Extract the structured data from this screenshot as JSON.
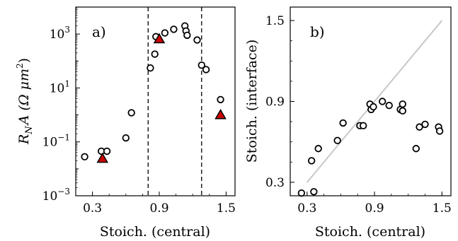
{
  "chart_data": [
    {
      "panel_label": "a)",
      "type": "scatter",
      "xlabel": "Stoich. (central)",
      "ylabel": "R_N A (Ω μm²)",
      "ylabel_parts": {
        "symbol": "R",
        "subscript": "N",
        "rest": "A (Ω μm",
        "sup": "2",
        "close": ")"
      },
      "yscale": "log",
      "xlim": [
        0.15,
        1.58
      ],
      "ylim": [
        0.001,
        10000
      ],
      "xticks": [
        0.3,
        0.9,
        1.5
      ],
      "xtick_labels": [
        "0.3",
        "0.9",
        "1.5"
      ],
      "yticks": [
        0.001,
        0.1,
        10,
        1000
      ],
      "ytick_labels": [
        {
          "base": "10",
          "exp": "−3"
        },
        {
          "base": "10",
          "exp": "−1"
        },
        {
          "base": "10",
          "exp": "1"
        },
        {
          "base": "10",
          "exp": "3"
        }
      ],
      "vlines": [
        0.8,
        1.28
      ],
      "circles": [
        [
          0.23,
          0.028
        ],
        [
          0.38,
          0.045
        ],
        [
          0.43,
          0.045
        ],
        [
          0.6,
          0.14
        ],
        [
          0.65,
          1.2
        ],
        [
          0.82,
          55
        ],
        [
          0.86,
          180
        ],
        [
          0.87,
          800
        ],
        [
          0.95,
          1100
        ],
        [
          1.03,
          1500
        ],
        [
          1.13,
          2000
        ],
        [
          1.14,
          1300
        ],
        [
          1.15,
          900
        ],
        [
          1.24,
          600
        ],
        [
          1.28,
          70
        ],
        [
          1.32,
          48
        ],
        [
          1.45,
          3.7
        ]
      ],
      "triangles": [
        [
          0.39,
          0.024
        ],
        [
          0.9,
          650
        ],
        [
          1.45,
          1.0
        ]
      ]
    },
    {
      "panel_label": "b)",
      "type": "scatter",
      "xlabel": "Stoich. (central)",
      "ylabel": "Stoich. (interface)",
      "xlim": [
        0.15,
        1.58
      ],
      "ylim": [
        0.2,
        1.6
      ],
      "xticks": [
        0.3,
        0.9,
        1.5
      ],
      "xtick_labels": [
        "0.3",
        "0.9",
        "1.5"
      ],
      "yticks": [
        0.3,
        0.9,
        1.5
      ],
      "ytick_labels": [
        "0.3",
        "0.9",
        "1.5"
      ],
      "reference_line": [
        [
          0.3,
          0.3
        ],
        [
          1.5,
          1.5
        ]
      ],
      "circles": [
        [
          0.25,
          0.22
        ],
        [
          0.34,
          0.46
        ],
        [
          0.36,
          0.23
        ],
        [
          0.4,
          0.55
        ],
        [
          0.57,
          0.61
        ],
        [
          0.62,
          0.74
        ],
        [
          0.77,
          0.72
        ],
        [
          0.8,
          0.72
        ],
        [
          0.86,
          0.88
        ],
        [
          0.87,
          0.84
        ],
        [
          0.89,
          0.86
        ],
        [
          0.97,
          0.9
        ],
        [
          1.03,
          0.87
        ],
        [
          1.13,
          0.84
        ],
        [
          1.15,
          0.88
        ],
        [
          1.15,
          0.83
        ],
        [
          1.27,
          0.55
        ],
        [
          1.3,
          0.71
        ],
        [
          1.35,
          0.73
        ],
        [
          1.47,
          0.71
        ],
        [
          1.48,
          0.68
        ]
      ]
    }
  ],
  "colors": {
    "marker_edge": "#000000",
    "triangle_fill": "#cc0000",
    "reference_line": "#c8c8c8",
    "vline": "#000000"
  }
}
